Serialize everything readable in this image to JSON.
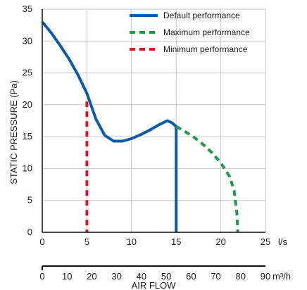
{
  "chart_data": {
    "type": "line",
    "xlabel": "AIR FLOW",
    "ylabel": "STATIC PRESSURE (Pa)",
    "x_unit": "l/s",
    "x2_unit": "m³/h",
    "xlim": [
      0,
      25
    ],
    "ylim": [
      0,
      35
    ],
    "x_ticks": [
      0,
      5,
      10,
      15,
      20,
      25
    ],
    "y_ticks": [
      0,
      5,
      10,
      15,
      20,
      25,
      30,
      35
    ],
    "x2_ticks": [
      0,
      10,
      20,
      30,
      40,
      50,
      60,
      70,
      80,
      90
    ],
    "x2_max": 90,
    "grid": true,
    "legend_position": "top-right",
    "series": [
      {
        "name": "Default performance",
        "color": "#0e5aa7",
        "style": "solid",
        "points": [
          [
            0,
            33
          ],
          [
            1,
            31.3
          ],
          [
            2,
            29.3
          ],
          [
            3,
            27.2
          ],
          [
            4,
            24.7
          ],
          [
            5,
            21.8
          ],
          [
            6,
            17.8
          ],
          [
            7,
            15.2
          ],
          [
            8,
            14.3
          ],
          [
            9,
            14.3
          ],
          [
            10,
            14.7
          ],
          [
            11,
            15.3
          ],
          [
            12,
            16
          ],
          [
            13,
            16.8
          ],
          [
            14,
            17.5
          ],
          [
            14.5,
            17.2
          ],
          [
            15,
            16.6
          ],
          [
            15,
            0
          ]
        ]
      },
      {
        "name": "Maximum performance",
        "color": "#1f9a4a",
        "style": "dashed",
        "points": [
          [
            15,
            16.6
          ],
          [
            16,
            15.8
          ],
          [
            17,
            14.9
          ],
          [
            18,
            13.8
          ],
          [
            19,
            12.5
          ],
          [
            20,
            10.9
          ],
          [
            21,
            8.7
          ],
          [
            21.5,
            6.5
          ],
          [
            21.8,
            3
          ],
          [
            21.9,
            0
          ]
        ]
      },
      {
        "name": "Minimum performance",
        "color": "#d7192b",
        "style": "dashed",
        "points": [
          [
            5,
            20.5
          ],
          [
            5,
            0
          ]
        ]
      }
    ]
  }
}
